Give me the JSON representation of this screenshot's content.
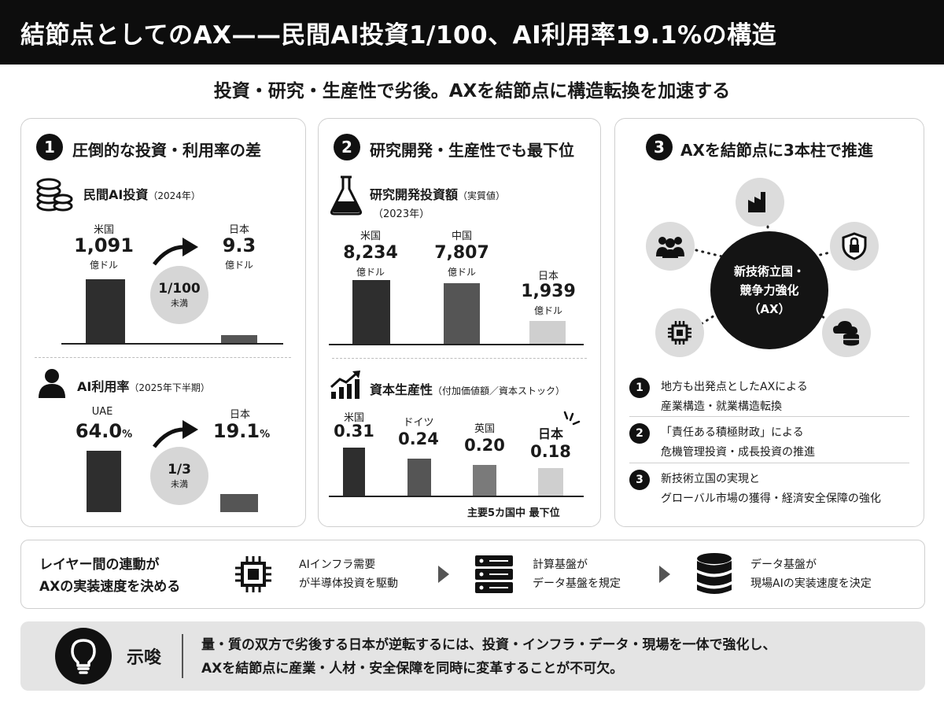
{
  "header": {
    "title": "結節点としてのAX——民間AI投資1/100、AI利用率19.1%の構造"
  },
  "subtitle": "投資・研究・生産性で劣後。AXを結節点に構造転換を加速する",
  "panel1": {
    "number": "1",
    "title": "圧倒的な投資・利用率の差",
    "section1": {
      "label": "民間AI投資",
      "label_note": "（2024年）",
      "unit": "億ドル",
      "ratio": "1/100",
      "ratio_note": "未満"
    },
    "section2": {
      "label": "AI利用率",
      "label_note": "（2025年下半期）",
      "unit": "%",
      "ratio": "1/3",
      "ratio_note": "未満"
    }
  },
  "panel2": {
    "number": "2",
    "title": "研究開発・生産性でも最下位",
    "section1": {
      "label": "研究開発投資額",
      "label_note": "（実質値）",
      "year_note": "（2023年）",
      "unit": "億ドル"
    },
    "section2": {
      "label": "資本生産性",
      "label_note": "（付加価値額／資本ストック）",
      "footnote": "主要5カ国中 最下位"
    }
  },
  "panel3": {
    "number": "3",
    "title": "AXを結節点に3本柱で推進",
    "hub": {
      "line1": "新技術立国・",
      "line2": "競争力強化",
      "line3": "（AX）"
    },
    "satellites": [
      "factory-icon",
      "people-icon",
      "shield-lock-icon",
      "chip-icon",
      "cloud-database-icon"
    ],
    "items": [
      {
        "n": "1",
        "line1": "地方も出発点としたAXによる",
        "line2": "産業構造・就業構造転換"
      },
      {
        "n": "2",
        "line1": "「責任ある積極財政」による",
        "line2": "危機管理投資・成長投資の推進"
      },
      {
        "n": "3",
        "line1": "新技術立国の実現と",
        "line2": "グローバル市場の獲得・経済安全保障の強化"
      }
    ]
  },
  "layers": {
    "title_line1": "レイヤー間の連動が",
    "title_line2": "AXの実装速度を決める",
    "steps": [
      {
        "icon": "chip-icon",
        "line1": "AIインフラ需要",
        "line2": "が半導体投資を駆動"
      },
      {
        "icon": "server-icon",
        "line1": "計算基盤が",
        "line2": "データ基盤を規定"
      },
      {
        "icon": "database-icon",
        "line1": "データ基盤が",
        "line2": "現場AIの実装速度を決定"
      }
    ]
  },
  "implication": {
    "label": "示唆",
    "line1": "量・質の双方で劣後する日本が逆転するには、投資・インフラ・データ・現場を一体で強化し、",
    "line2": "AXを結節点に産業・人材・安全保障を同時に変革することが不可欠。"
  },
  "chart_data": [
    {
      "type": "bar",
      "title": "民間AI投資（2024年）",
      "categories": [
        "米国",
        "日本"
      ],
      "values": [
        1091,
        9.3
      ],
      "value_labels": [
        "1,091",
        "9.3"
      ],
      "unit": "億ドル",
      "colors": [
        "#2e2e2e",
        "#555555"
      ]
    },
    {
      "type": "bar",
      "title": "AI利用率（2025年下半期）",
      "categories": [
        "UAE",
        "日本"
      ],
      "values": [
        64.0,
        19.1
      ],
      "value_labels": [
        "64.0",
        "19.1"
      ],
      "unit": "%",
      "colors": [
        "#2e2e2e",
        "#555555"
      ]
    },
    {
      "type": "bar",
      "title": "研究開発投資額（実質値）（2023年）",
      "categories": [
        "米国",
        "中国",
        "日本"
      ],
      "values": [
        8234,
        7807,
        1939
      ],
      "value_labels": [
        "8,234",
        "7,807",
        "1,939"
      ],
      "unit": "億ドル",
      "colors": [
        "#2e2e2e",
        "#555555",
        "#cfcfcf"
      ]
    },
    {
      "type": "bar",
      "title": "資本生産性（付加価値額／資本ストック）",
      "categories": [
        "米国",
        "ドイツ",
        "英国",
        "日本"
      ],
      "values": [
        0.31,
        0.24,
        0.2,
        0.18
      ],
      "value_labels": [
        "0.31",
        "0.24",
        "0.20",
        "0.18"
      ],
      "colors": [
        "#2e2e2e",
        "#555555",
        "#7a7a7a",
        "#cfcfcf"
      ]
    }
  ]
}
